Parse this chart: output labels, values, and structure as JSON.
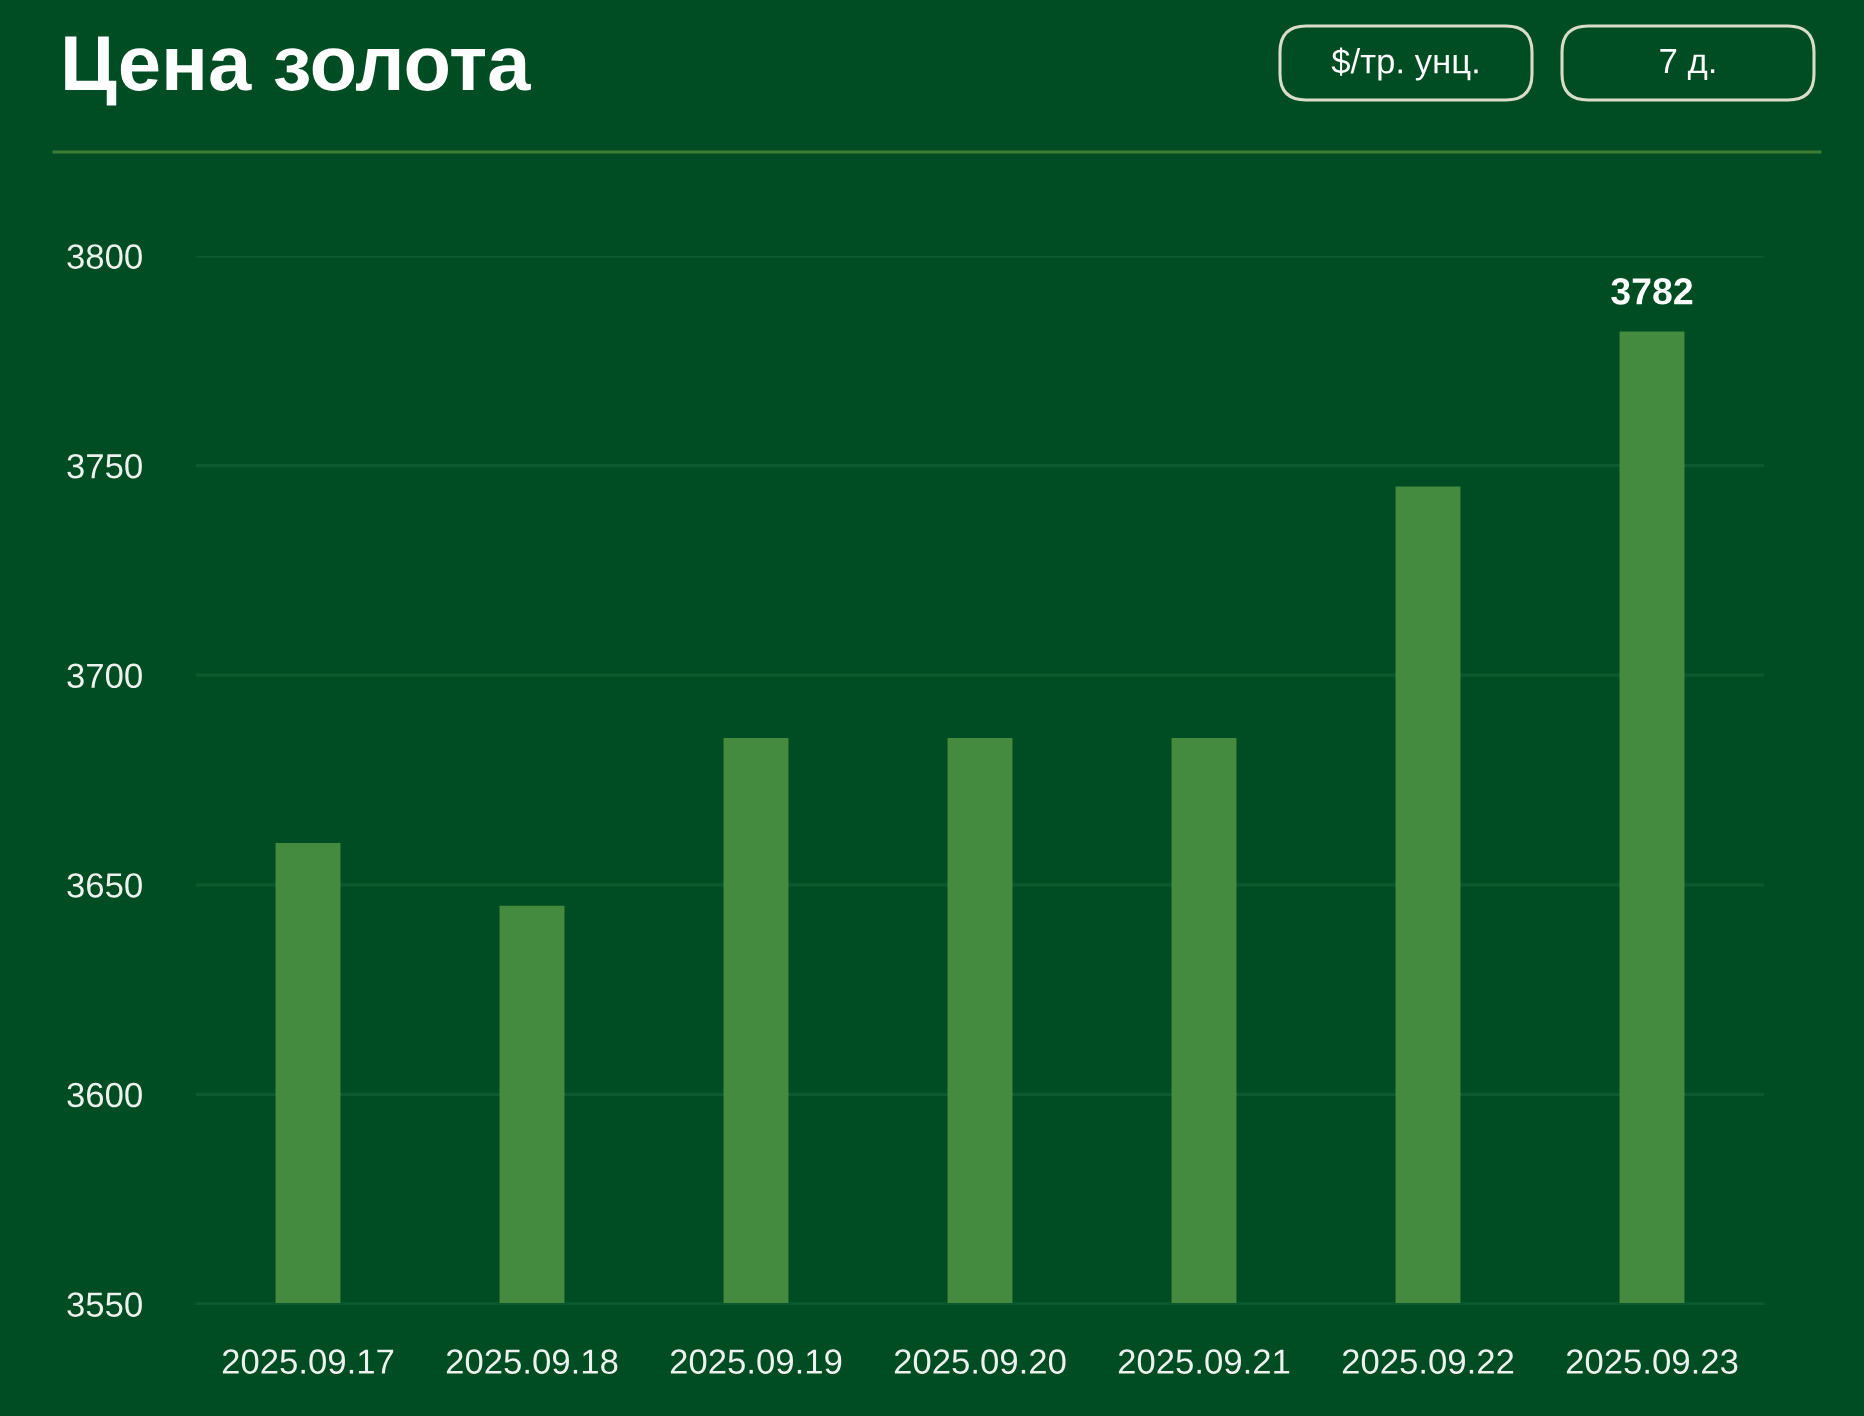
{
  "chart_data": {
    "type": "bar",
    "title": "Цена золота",
    "categories": [
      "2025.09.17",
      "2025.09.18",
      "2025.09.19",
      "2025.09.20",
      "2025.09.21",
      "2025.09.22",
      "2025.09.23"
    ],
    "values": [
      3660,
      3645,
      3685,
      3685,
      3685,
      3745,
      3782
    ],
    "value_labels": [
      null,
      null,
      null,
      null,
      null,
      null,
      "3782"
    ],
    "color": "#448a3f",
    "ylim": [
      3550,
      3800
    ],
    "yticks": [
      3550,
      3600,
      3650,
      3700,
      3750,
      3800
    ],
    "grid": "y",
    "annotations": [
      "$/тр. унц.",
      "7 д."
    ]
  }
}
